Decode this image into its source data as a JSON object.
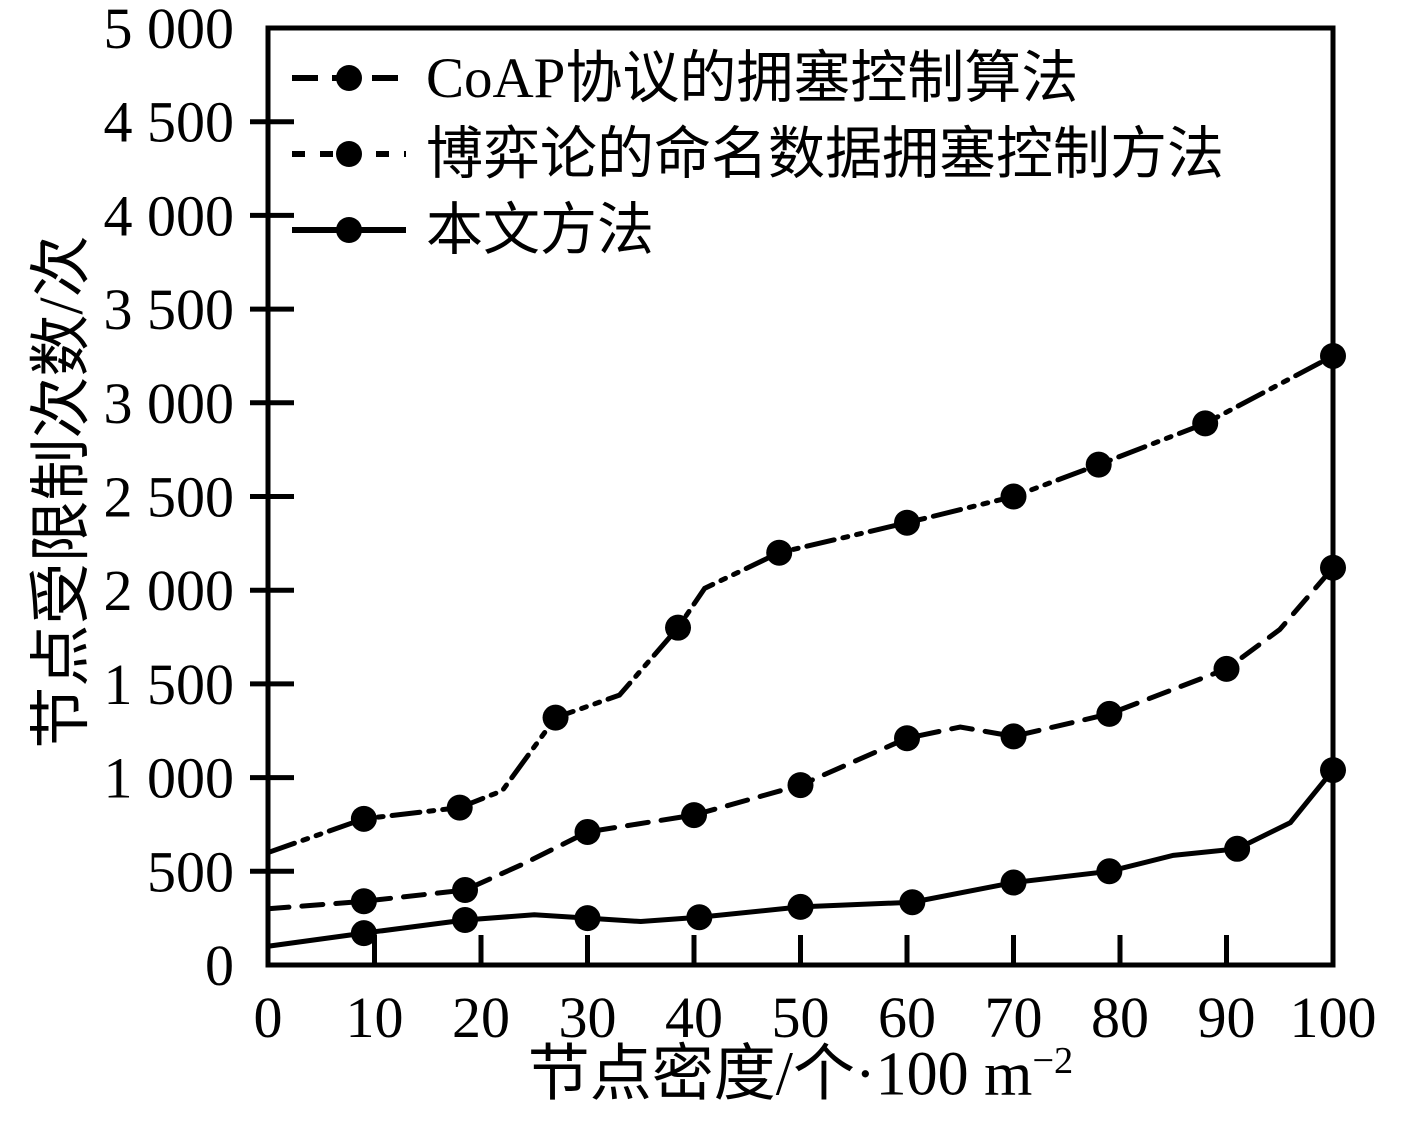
{
  "chart_data": {
    "type": "line",
    "title": "",
    "x_axis": {
      "label_main": "节点密度/个·100 m",
      "label_sup": "−2",
      "range": [
        0,
        100
      ],
      "ticks": [
        0,
        10,
        20,
        30,
        40,
        50,
        60,
        70,
        80,
        90,
        100
      ],
      "tick_labels": [
        "0",
        "10",
        "20",
        "30",
        "40",
        "50",
        "60",
        "70",
        "80",
        "90",
        "100"
      ]
    },
    "y_axis": {
      "label": "节点受限制次数/次",
      "range": [
        0,
        5000
      ],
      "ticks": [
        0,
        500,
        1000,
        1500,
        2000,
        2500,
        3000,
        3500,
        4000,
        4500,
        5000
      ],
      "tick_labels": [
        "0",
        "500",
        "1 000",
        "1 500",
        "2 000",
        "2 500",
        "3 000",
        "3 500",
        "4 000",
        "4 500",
        "5 000"
      ]
    },
    "grid": false,
    "legend_position": "top-left-inside",
    "line_color": "#000000",
    "background_color": "#ffffff",
    "series": [
      {
        "name": "CoAP协议的拥塞控制算法",
        "line_style": "dash-dot-dot",
        "marker": "filled-circle",
        "color": "#000000",
        "points": [
          [
            9,
            780
          ],
          [
            18,
            840
          ],
          [
            27,
            1320
          ],
          [
            38.5,
            1800
          ],
          [
            48,
            2200
          ],
          [
            60,
            2360
          ],
          [
            70,
            2500
          ],
          [
            78,
            2670
          ],
          [
            88,
            2890
          ],
          [
            100,
            3250
          ]
        ],
        "path": [
          [
            0,
            600
          ],
          [
            9,
            780
          ],
          [
            18,
            840
          ],
          [
            22,
            930
          ],
          [
            27,
            1320
          ],
          [
            33,
            1440
          ],
          [
            38.5,
            1800
          ],
          [
            41,
            2010
          ],
          [
            48,
            2200
          ],
          [
            60,
            2360
          ],
          [
            70,
            2500
          ],
          [
            78,
            2670
          ],
          [
            88,
            2890
          ],
          [
            100,
            3250
          ]
        ]
      },
      {
        "name": "博弈论的命名数据拥塞控制方法",
        "line_style": "dashed",
        "marker": "filled-circle",
        "color": "#000000",
        "points": [
          [
            9,
            340
          ],
          [
            18.5,
            400
          ],
          [
            30,
            710
          ],
          [
            40,
            800
          ],
          [
            50,
            960
          ],
          [
            60,
            1210
          ],
          [
            70,
            1220
          ],
          [
            79,
            1340
          ],
          [
            90,
            1580
          ],
          [
            100,
            2120
          ]
        ],
        "path": [
          [
            0,
            300
          ],
          [
            9,
            340
          ],
          [
            18.5,
            400
          ],
          [
            24,
            540
          ],
          [
            30,
            710
          ],
          [
            40,
            800
          ],
          [
            50,
            960
          ],
          [
            60,
            1210
          ],
          [
            65,
            1270
          ],
          [
            70,
            1220
          ],
          [
            79,
            1340
          ],
          [
            90,
            1580
          ],
          [
            95,
            1790
          ],
          [
            100,
            2120
          ]
        ]
      },
      {
        "name": "本文方法",
        "line_style": "solid",
        "marker": "filled-circle",
        "color": "#000000",
        "points": [
          [
            9,
            170
          ],
          [
            18.5,
            240
          ],
          [
            30,
            250
          ],
          [
            40.5,
            255
          ],
          [
            50,
            310
          ],
          [
            60.5,
            335
          ],
          [
            70,
            440
          ],
          [
            79,
            500
          ],
          [
            91,
            620
          ],
          [
            100,
            1040
          ]
        ],
        "path": [
          [
            0,
            100
          ],
          [
            9,
            170
          ],
          [
            18.5,
            240
          ],
          [
            25,
            268
          ],
          [
            30,
            250
          ],
          [
            35,
            232
          ],
          [
            40.5,
            255
          ],
          [
            50,
            310
          ],
          [
            60.5,
            335
          ],
          [
            70,
            440
          ],
          [
            79,
            500
          ],
          [
            85,
            585
          ],
          [
            91,
            620
          ],
          [
            96,
            760
          ],
          [
            100,
            1040
          ]
        ]
      }
    ]
  }
}
